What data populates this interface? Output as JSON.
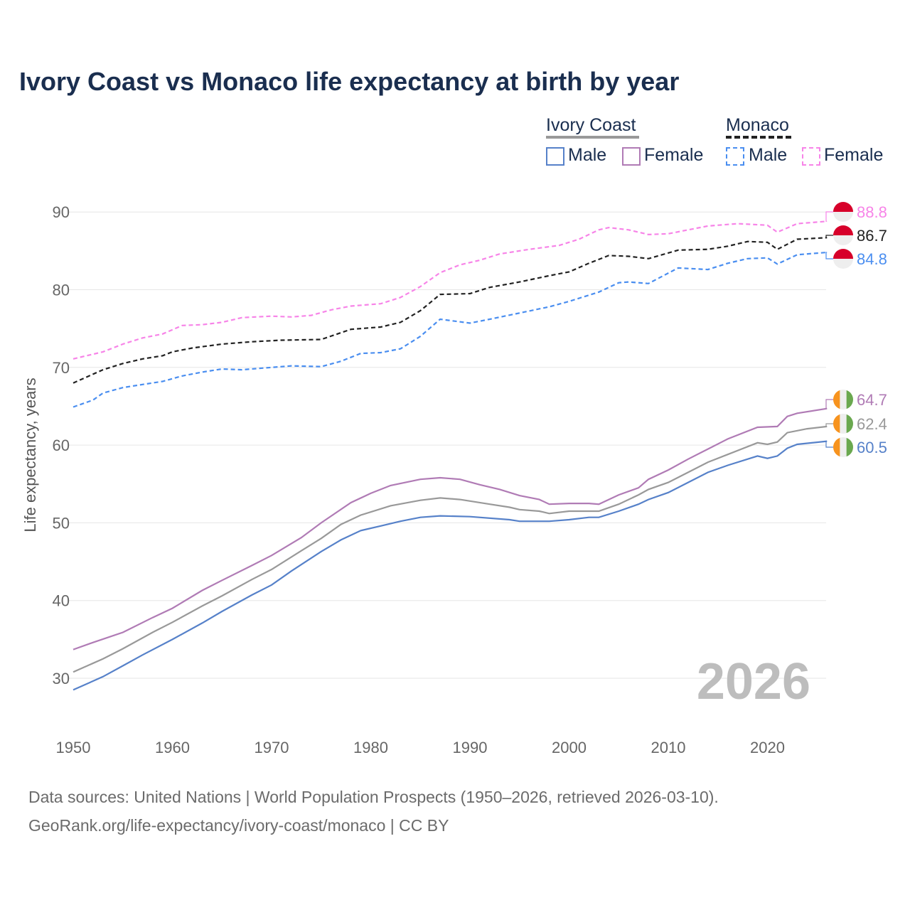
{
  "title": "Ivory Coast vs Monaco life expectancy at birth by year",
  "legend": {
    "groups": [
      {
        "name": "Ivory Coast",
        "items": [
          "Male",
          "Female"
        ]
      },
      {
        "name": "Monaco",
        "items": [
          "Male",
          "Female"
        ]
      }
    ]
  },
  "year_watermark": "2026",
  "sources": {
    "line1": "Data sources: United Nations | World Population Prospects (1950–2026, retrieved 2026-03-10).",
    "line2": "GeoRank.org/life-expectancy/ivory-coast/monaco | CC BY"
  },
  "chart_data": {
    "type": "line",
    "title": "Ivory Coast vs Monaco life expectancy at birth by year",
    "xlabel": "",
    "ylabel": "Life expectancy, years",
    "xlim": [
      1950,
      2026
    ],
    "ylim": [
      25,
      92
    ],
    "xticks": [
      1950,
      1960,
      1970,
      1980,
      1990,
      2000,
      2010,
      2020
    ],
    "yticks": [
      30,
      40,
      50,
      60,
      70,
      80,
      90
    ],
    "grid": true,
    "legend_position": "top-right",
    "series": [
      {
        "name": "Monaco Female",
        "country": "monaco",
        "color": "#f784e8",
        "dashed": true,
        "end_label": "88.8",
        "points": [
          [
            1950,
            71.1
          ],
          [
            1953,
            72.0
          ],
          [
            1955,
            73.0
          ],
          [
            1957,
            73.8
          ],
          [
            1959,
            74.3
          ],
          [
            1961,
            75.4
          ],
          [
            1963,
            75.5
          ],
          [
            1965,
            75.8
          ],
          [
            1967,
            76.4
          ],
          [
            1970,
            76.6
          ],
          [
            1972,
            76.5
          ],
          [
            1974,
            76.7
          ],
          [
            1976,
            77.4
          ],
          [
            1978,
            77.9
          ],
          [
            1981,
            78.2
          ],
          [
            1983,
            79.0
          ],
          [
            1985,
            80.4
          ],
          [
            1987,
            82.2
          ],
          [
            1989,
            83.2
          ],
          [
            1991,
            83.8
          ],
          [
            1993,
            84.6
          ],
          [
            1996,
            85.2
          ],
          [
            1999,
            85.7
          ],
          [
            2001,
            86.5
          ],
          [
            2003,
            87.7
          ],
          [
            2004,
            88.0
          ],
          [
            2006,
            87.7
          ],
          [
            2008,
            87.1
          ],
          [
            2010,
            87.2
          ],
          [
            2012,
            87.7
          ],
          [
            2014,
            88.2
          ],
          [
            2017,
            88.5
          ],
          [
            2020,
            88.3
          ],
          [
            2021,
            87.4
          ],
          [
            2023,
            88.5
          ],
          [
            2026,
            88.8
          ]
        ]
      },
      {
        "name": "Monaco",
        "country": "monaco",
        "color": "#222222",
        "dashed": true,
        "end_label": "86.7",
        "points": [
          [
            1950,
            68.0
          ],
          [
            1953,
            69.7
          ],
          [
            1955,
            70.5
          ],
          [
            1957,
            71.1
          ],
          [
            1959,
            71.5
          ],
          [
            1960,
            72.0
          ],
          [
            1962,
            72.5
          ],
          [
            1965,
            73.0
          ],
          [
            1968,
            73.3
          ],
          [
            1971,
            73.5
          ],
          [
            1975,
            73.6
          ],
          [
            1978,
            74.9
          ],
          [
            1981,
            75.2
          ],
          [
            1983,
            75.8
          ],
          [
            1985,
            77.3
          ],
          [
            1987,
            79.4
          ],
          [
            1990,
            79.5
          ],
          [
            1992,
            80.3
          ],
          [
            1995,
            81.0
          ],
          [
            1998,
            81.8
          ],
          [
            2000,
            82.3
          ],
          [
            2002,
            83.4
          ],
          [
            2004,
            84.4
          ],
          [
            2006,
            84.3
          ],
          [
            2008,
            84.0
          ],
          [
            2011,
            85.1
          ],
          [
            2014,
            85.2
          ],
          [
            2016,
            85.6
          ],
          [
            2018,
            86.2
          ],
          [
            2020,
            86.1
          ],
          [
            2021,
            85.2
          ],
          [
            2023,
            86.5
          ],
          [
            2026,
            86.7
          ]
        ]
      },
      {
        "name": "Monaco Male",
        "country": "monaco",
        "color": "#4a8ef0",
        "dashed": true,
        "end_label": "84.8",
        "points": [
          [
            1950,
            64.9
          ],
          [
            1952,
            65.8
          ],
          [
            1953,
            66.7
          ],
          [
            1955,
            67.4
          ],
          [
            1957,
            67.8
          ],
          [
            1959,
            68.2
          ],
          [
            1961,
            68.9
          ],
          [
            1963,
            69.4
          ],
          [
            1965,
            69.8
          ],
          [
            1967,
            69.7
          ],
          [
            1970,
            70.0
          ],
          [
            1972,
            70.2
          ],
          [
            1975,
            70.1
          ],
          [
            1977,
            70.8
          ],
          [
            1979,
            71.8
          ],
          [
            1981,
            71.9
          ],
          [
            1983,
            72.4
          ],
          [
            1985,
            74.0
          ],
          [
            1987,
            76.2
          ],
          [
            1990,
            75.7
          ],
          [
            1992,
            76.2
          ],
          [
            1995,
            77.0
          ],
          [
            1998,
            77.8
          ],
          [
            2000,
            78.5
          ],
          [
            2003,
            79.7
          ],
          [
            2005,
            80.9
          ],
          [
            2006,
            81.0
          ],
          [
            2008,
            80.8
          ],
          [
            2011,
            82.8
          ],
          [
            2014,
            82.6
          ],
          [
            2016,
            83.4
          ],
          [
            2018,
            84.0
          ],
          [
            2020,
            84.1
          ],
          [
            2021,
            83.3
          ],
          [
            2023,
            84.5
          ],
          [
            2026,
            84.8
          ]
        ]
      },
      {
        "name": "Ivory Coast Female",
        "country": "ivory",
        "color": "#b07bb5",
        "dashed": false,
        "end_label": "64.7",
        "points": [
          [
            1950,
            33.7
          ],
          [
            1952,
            34.6
          ],
          [
            1955,
            35.9
          ],
          [
            1958,
            37.8
          ],
          [
            1960,
            39.0
          ],
          [
            1963,
            41.3
          ],
          [
            1965,
            42.6
          ],
          [
            1968,
            44.5
          ],
          [
            1970,
            45.8
          ],
          [
            1973,
            48.1
          ],
          [
            1975,
            50.0
          ],
          [
            1978,
            52.6
          ],
          [
            1980,
            53.8
          ],
          [
            1982,
            54.8
          ],
          [
            1985,
            55.6
          ],
          [
            1987,
            55.8
          ],
          [
            1989,
            55.6
          ],
          [
            1991,
            54.9
          ],
          [
            1993,
            54.3
          ],
          [
            1995,
            53.5
          ],
          [
            1997,
            53.0
          ],
          [
            1998,
            52.4
          ],
          [
            2000,
            52.5
          ],
          [
            2002,
            52.5
          ],
          [
            2003,
            52.4
          ],
          [
            2005,
            53.6
          ],
          [
            2007,
            54.5
          ],
          [
            2008,
            55.6
          ],
          [
            2010,
            56.8
          ],
          [
            2012,
            58.2
          ],
          [
            2014,
            59.5
          ],
          [
            2016,
            60.8
          ],
          [
            2019,
            62.3
          ],
          [
            2021,
            62.4
          ],
          [
            2022,
            63.7
          ],
          [
            2023,
            64.1
          ],
          [
            2026,
            64.7
          ]
        ]
      },
      {
        "name": "Ivory Coast",
        "country": "ivory",
        "color": "#999999",
        "dashed": false,
        "end_label": "62.4",
        "points": [
          [
            1950,
            30.8
          ],
          [
            1953,
            32.5
          ],
          [
            1955,
            33.8
          ],
          [
            1958,
            35.9
          ],
          [
            1960,
            37.2
          ],
          [
            1963,
            39.3
          ],
          [
            1965,
            40.6
          ],
          [
            1968,
            42.7
          ],
          [
            1970,
            44.0
          ],
          [
            1973,
            46.4
          ],
          [
            1975,
            48.0
          ],
          [
            1977,
            49.8
          ],
          [
            1979,
            51.0
          ],
          [
            1982,
            52.2
          ],
          [
            1985,
            52.9
          ],
          [
            1987,
            53.2
          ],
          [
            1989,
            53.0
          ],
          [
            1992,
            52.4
          ],
          [
            1994,
            52.0
          ],
          [
            1995,
            51.7
          ],
          [
            1997,
            51.5
          ],
          [
            1998,
            51.2
          ],
          [
            2000,
            51.5
          ],
          [
            2003,
            51.5
          ],
          [
            2005,
            52.4
          ],
          [
            2007,
            53.6
          ],
          [
            2008,
            54.3
          ],
          [
            2010,
            55.2
          ],
          [
            2012,
            56.5
          ],
          [
            2014,
            57.8
          ],
          [
            2016,
            58.8
          ],
          [
            2019,
            60.3
          ],
          [
            2020,
            60.1
          ],
          [
            2021,
            60.4
          ],
          [
            2022,
            61.6
          ],
          [
            2024,
            62.1
          ],
          [
            2026,
            62.4
          ]
        ]
      },
      {
        "name": "Ivory Coast Male",
        "country": "ivory",
        "color": "#5681c9",
        "dashed": false,
        "end_label": "60.5",
        "points": [
          [
            1950,
            28.5
          ],
          [
            1953,
            30.2
          ],
          [
            1955,
            31.6
          ],
          [
            1957,
            33.0
          ],
          [
            1960,
            35.0
          ],
          [
            1963,
            37.1
          ],
          [
            1965,
            38.6
          ],
          [
            1968,
            40.7
          ],
          [
            1970,
            42.0
          ],
          [
            1972,
            43.8
          ],
          [
            1975,
            46.3
          ],
          [
            1977,
            47.8
          ],
          [
            1979,
            49.0
          ],
          [
            1981,
            49.6
          ],
          [
            1983,
            50.2
          ],
          [
            1985,
            50.7
          ],
          [
            1987,
            50.9
          ],
          [
            1990,
            50.8
          ],
          [
            1994,
            50.4
          ],
          [
            1995,
            50.2
          ],
          [
            1998,
            50.2
          ],
          [
            2000,
            50.4
          ],
          [
            2002,
            50.7
          ],
          [
            2003,
            50.7
          ],
          [
            2005,
            51.5
          ],
          [
            2007,
            52.4
          ],
          [
            2008,
            53.0
          ],
          [
            2010,
            53.9
          ],
          [
            2012,
            55.2
          ],
          [
            2014,
            56.5
          ],
          [
            2016,
            57.4
          ],
          [
            2019,
            58.6
          ],
          [
            2020,
            58.3
          ],
          [
            2021,
            58.6
          ],
          [
            2022,
            59.6
          ],
          [
            2023,
            60.1
          ],
          [
            2026,
            60.5
          ]
        ]
      }
    ]
  }
}
